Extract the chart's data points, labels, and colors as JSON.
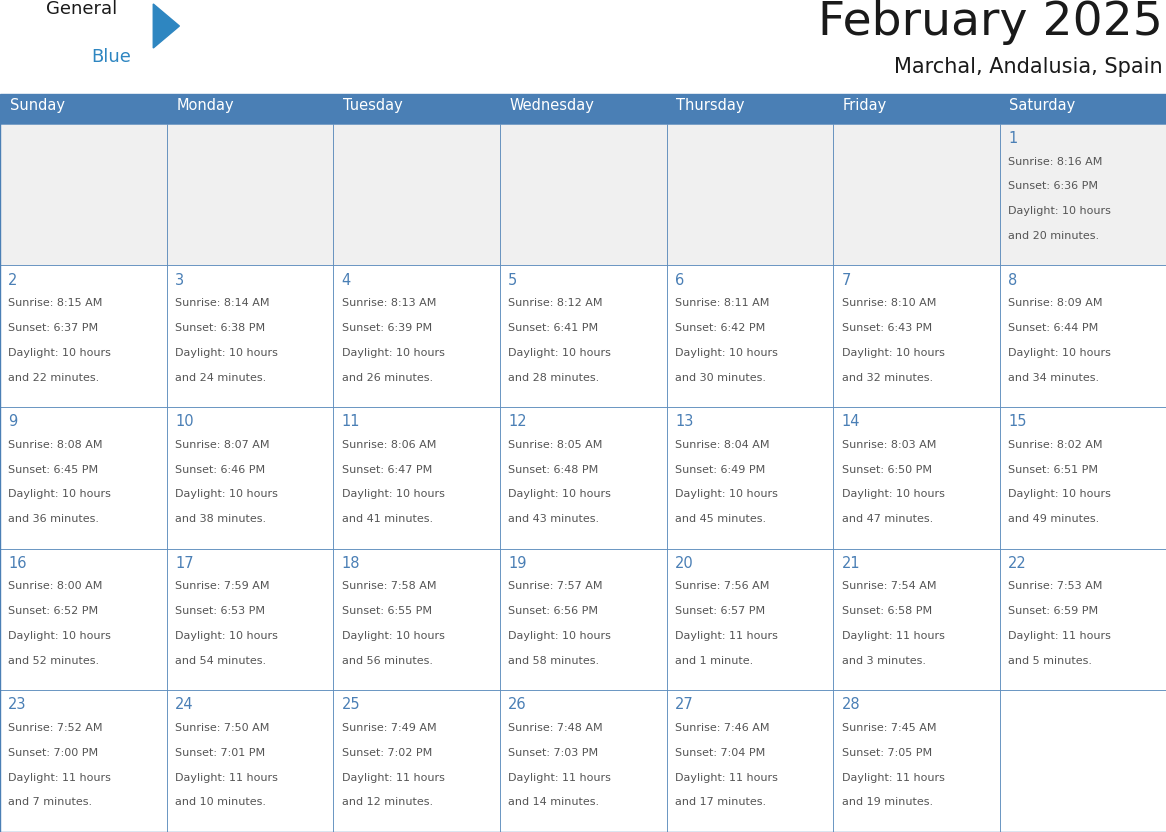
{
  "title": "February 2025",
  "subtitle": "Marchal, Andalusia, Spain",
  "header_bg": "#4a7fb5",
  "header_text_color": "#ffffff",
  "cell_bg_normal": "#ffffff",
  "cell_bg_first": "#f0f0f0",
  "cell_border_color": "#4a7fb5",
  "day_number_color": "#4a7fb5",
  "detail_text_color": "#555555",
  "days_of_week": [
    "Sunday",
    "Monday",
    "Tuesday",
    "Wednesday",
    "Thursday",
    "Friday",
    "Saturday"
  ],
  "calendar_data": [
    [
      {
        "day": null,
        "info": null
      },
      {
        "day": null,
        "info": null
      },
      {
        "day": null,
        "info": null
      },
      {
        "day": null,
        "info": null
      },
      {
        "day": null,
        "info": null
      },
      {
        "day": null,
        "info": null
      },
      {
        "day": 1,
        "info": "Sunrise: 8:16 AM\nSunset: 6:36 PM\nDaylight: 10 hours\nand 20 minutes."
      }
    ],
    [
      {
        "day": 2,
        "info": "Sunrise: 8:15 AM\nSunset: 6:37 PM\nDaylight: 10 hours\nand 22 minutes."
      },
      {
        "day": 3,
        "info": "Sunrise: 8:14 AM\nSunset: 6:38 PM\nDaylight: 10 hours\nand 24 minutes."
      },
      {
        "day": 4,
        "info": "Sunrise: 8:13 AM\nSunset: 6:39 PM\nDaylight: 10 hours\nand 26 minutes."
      },
      {
        "day": 5,
        "info": "Sunrise: 8:12 AM\nSunset: 6:41 PM\nDaylight: 10 hours\nand 28 minutes."
      },
      {
        "day": 6,
        "info": "Sunrise: 8:11 AM\nSunset: 6:42 PM\nDaylight: 10 hours\nand 30 minutes."
      },
      {
        "day": 7,
        "info": "Sunrise: 8:10 AM\nSunset: 6:43 PM\nDaylight: 10 hours\nand 32 minutes."
      },
      {
        "day": 8,
        "info": "Sunrise: 8:09 AM\nSunset: 6:44 PM\nDaylight: 10 hours\nand 34 minutes."
      }
    ],
    [
      {
        "day": 9,
        "info": "Sunrise: 8:08 AM\nSunset: 6:45 PM\nDaylight: 10 hours\nand 36 minutes."
      },
      {
        "day": 10,
        "info": "Sunrise: 8:07 AM\nSunset: 6:46 PM\nDaylight: 10 hours\nand 38 minutes."
      },
      {
        "day": 11,
        "info": "Sunrise: 8:06 AM\nSunset: 6:47 PM\nDaylight: 10 hours\nand 41 minutes."
      },
      {
        "day": 12,
        "info": "Sunrise: 8:05 AM\nSunset: 6:48 PM\nDaylight: 10 hours\nand 43 minutes."
      },
      {
        "day": 13,
        "info": "Sunrise: 8:04 AM\nSunset: 6:49 PM\nDaylight: 10 hours\nand 45 minutes."
      },
      {
        "day": 14,
        "info": "Sunrise: 8:03 AM\nSunset: 6:50 PM\nDaylight: 10 hours\nand 47 minutes."
      },
      {
        "day": 15,
        "info": "Sunrise: 8:02 AM\nSunset: 6:51 PM\nDaylight: 10 hours\nand 49 minutes."
      }
    ],
    [
      {
        "day": 16,
        "info": "Sunrise: 8:00 AM\nSunset: 6:52 PM\nDaylight: 10 hours\nand 52 minutes."
      },
      {
        "day": 17,
        "info": "Sunrise: 7:59 AM\nSunset: 6:53 PM\nDaylight: 10 hours\nand 54 minutes."
      },
      {
        "day": 18,
        "info": "Sunrise: 7:58 AM\nSunset: 6:55 PM\nDaylight: 10 hours\nand 56 minutes."
      },
      {
        "day": 19,
        "info": "Sunrise: 7:57 AM\nSunset: 6:56 PM\nDaylight: 10 hours\nand 58 minutes."
      },
      {
        "day": 20,
        "info": "Sunrise: 7:56 AM\nSunset: 6:57 PM\nDaylight: 11 hours\nand 1 minute."
      },
      {
        "day": 21,
        "info": "Sunrise: 7:54 AM\nSunset: 6:58 PM\nDaylight: 11 hours\nand 3 minutes."
      },
      {
        "day": 22,
        "info": "Sunrise: 7:53 AM\nSunset: 6:59 PM\nDaylight: 11 hours\nand 5 minutes."
      }
    ],
    [
      {
        "day": 23,
        "info": "Sunrise: 7:52 AM\nSunset: 7:00 PM\nDaylight: 11 hours\nand 7 minutes."
      },
      {
        "day": 24,
        "info": "Sunrise: 7:50 AM\nSunset: 7:01 PM\nDaylight: 11 hours\nand 10 minutes."
      },
      {
        "day": 25,
        "info": "Sunrise: 7:49 AM\nSunset: 7:02 PM\nDaylight: 11 hours\nand 12 minutes."
      },
      {
        "day": 26,
        "info": "Sunrise: 7:48 AM\nSunset: 7:03 PM\nDaylight: 11 hours\nand 14 minutes."
      },
      {
        "day": 27,
        "info": "Sunrise: 7:46 AM\nSunset: 7:04 PM\nDaylight: 11 hours\nand 17 minutes."
      },
      {
        "day": 28,
        "info": "Sunrise: 7:45 AM\nSunset: 7:05 PM\nDaylight: 11 hours\nand 19 minutes."
      },
      {
        "day": null,
        "info": null
      }
    ]
  ],
  "logo_general_color": "#1a1a1a",
  "logo_blue_color": "#2e86c1"
}
